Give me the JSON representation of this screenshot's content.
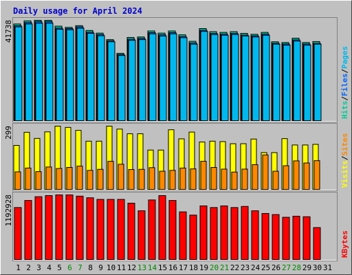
{
  "chart_data": {
    "type": "bar",
    "title": "Daily usage for April 2024",
    "days": [
      "1",
      "2",
      "3",
      "4",
      "5",
      "6",
      "7",
      "8",
      "9",
      "10",
      "11",
      "12",
      "13",
      "14",
      "15",
      "16",
      "17",
      "18",
      "19",
      "20",
      "21",
      "22",
      "23",
      "24",
      "25",
      "26",
      "27",
      "28",
      "29",
      "30",
      "31"
    ],
    "weekend_days": [
      "6",
      "7",
      "13",
      "14",
      "20",
      "21",
      "27",
      "28"
    ],
    "colors": {
      "background": "#c0c0c0",
      "frame": "#808080",
      "title": "#0000cc",
      "hits": "#00cc99",
      "files": "#0066ff",
      "pages": "#00b8ee",
      "visits": "#ffff00",
      "sites": "#ff8800",
      "kbytes": "#ff0000",
      "weekend_label": "#008800"
    },
    "panels": [
      {
        "name": "requests",
        "scale_label": "41738",
        "ymax": 41738,
        "side_labels": [
          {
            "text": "Hits",
            "color": "#00cc99"
          },
          {
            "text": "Files",
            "color": "#0066ff"
          },
          {
            "text": "Pages",
            "color": "#00b8ee"
          }
        ],
        "series": [
          {
            "key": "hits",
            "values": [
              40200,
              41500,
              41738,
              41738,
              39300,
              38800,
              39500,
              37500,
              36400,
              33700,
              28000,
              34600,
              34800,
              37300,
              36400,
              37300,
              35700,
              33000,
              38300,
              37000,
              36700,
              37000,
              36300,
              35900,
              36700,
              32800,
              32500,
              34300,
              32500,
              32900
            ]
          },
          {
            "key": "files",
            "values": [
              39500,
              40800,
              41200,
              41200,
              38500,
              38300,
              39000,
              36800,
              35800,
              33200,
              27500,
              33900,
              34200,
              36600,
              35700,
              36600,
              35000,
              32300,
              37600,
              36300,
              36000,
              36300,
              35600,
              35300,
              36000,
              32200,
              31900,
              33600,
              31900,
              32200
            ]
          },
          {
            "key": "pages",
            "values": [
              39000,
              40200,
              40500,
              40500,
              38000,
              37800,
              38400,
              36300,
              35300,
              32800,
              27100,
              33400,
              33700,
              36100,
              35200,
              36100,
              34500,
              31800,
              37100,
              35800,
              35500,
              35800,
              35200,
              34800,
              35500,
              31800,
              31400,
              33100,
              31400,
              31800
            ]
          }
        ]
      },
      {
        "name": "visitors",
        "scale_label": "299",
        "ymax": 299,
        "side_labels": [
          {
            "text": "Visits",
            "color": "#ffff00"
          },
          {
            "text": "Sites",
            "color": "#ff8800"
          }
        ],
        "series": [
          {
            "key": "visits",
            "values": [
              208,
              270,
              241,
              272,
              299,
              293,
              279,
              228,
              228,
              299,
              285,
              263,
              263,
              186,
              186,
              282,
              239,
              271,
              224,
              228,
              226,
              216,
              216,
              238,
              174,
              174,
              240,
              210,
              210,
              213
            ]
          },
          {
            "key": "sites",
            "values": [
              83,
              101,
              84,
              106,
              99,
              104,
              110,
              90,
              95,
              133,
              119,
              94,
              95,
              103,
              86,
              90,
              101,
              97,
              133,
              104,
              96,
              82,
              96,
              117,
              163,
              86,
              112,
              135,
              125,
              136
            ]
          }
        ]
      },
      {
        "name": "volume",
        "scale_label": "1192928",
        "ymax": 1192928,
        "side_labels": [
          {
            "text": "KBytes",
            "color": "#ff0000"
          }
        ],
        "series": [
          {
            "key": "kbytes",
            "values": [
              960000,
              1090000,
              1160000,
              1180000,
              1192928,
              1192928,
              1170000,
              1140000,
              1110000,
              1110000,
              1110000,
              1040000,
              900000,
              1100000,
              1180000,
              1090000,
              880000,
              820000,
              990000,
              960000,
              990000,
              960000,
              980000,
              900000,
              850000,
              830000,
              780000,
              800000,
              790000,
              590000
            ]
          }
        ]
      }
    ]
  }
}
